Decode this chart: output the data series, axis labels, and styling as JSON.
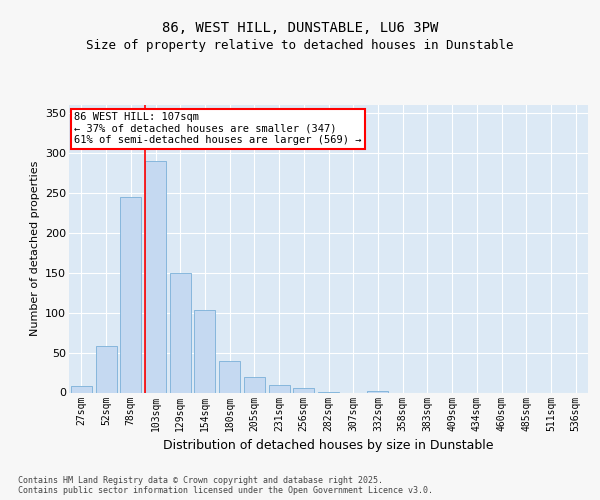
{
  "title1": "86, WEST HILL, DUNSTABLE, LU6 3PW",
  "title2": "Size of property relative to detached houses in Dunstable",
  "xlabel": "Distribution of detached houses by size in Dunstable",
  "ylabel": "Number of detached properties",
  "categories": [
    "27sqm",
    "52sqm",
    "78sqm",
    "103sqm",
    "129sqm",
    "154sqm",
    "180sqm",
    "205sqm",
    "231sqm",
    "256sqm",
    "282sqm",
    "307sqm",
    "332sqm",
    "358sqm",
    "383sqm",
    "409sqm",
    "434sqm",
    "460sqm",
    "485sqm",
    "511sqm",
    "536sqm"
  ],
  "values": [
    8,
    58,
    245,
    290,
    150,
    103,
    40,
    20,
    10,
    6,
    1,
    0,
    2,
    0,
    0,
    0,
    0,
    0,
    0,
    0,
    0
  ],
  "bar_color": "#c5d9f1",
  "bar_edge_color": "#7ab0d8",
  "red_line_index": 2.575,
  "annotation_text": "86 WEST HILL: 107sqm\n← 37% of detached houses are smaller (347)\n61% of semi-detached houses are larger (569) →",
  "ylim": [
    0,
    360
  ],
  "yticks": [
    0,
    50,
    100,
    150,
    200,
    250,
    300,
    350
  ],
  "footnote": "Contains HM Land Registry data © Crown copyright and database right 2025.\nContains public sector information licensed under the Open Government Licence v3.0.",
  "fig_bg_color": "#f7f7f7",
  "plot_bg_color": "#dce9f5",
  "grid_color": "#ffffff",
  "title_fontsize": 10,
  "subtitle_fontsize": 9,
  "axis_label_fontsize": 8,
  "tick_fontsize": 7,
  "footnote_fontsize": 6,
  "annotation_fontsize": 7.5
}
